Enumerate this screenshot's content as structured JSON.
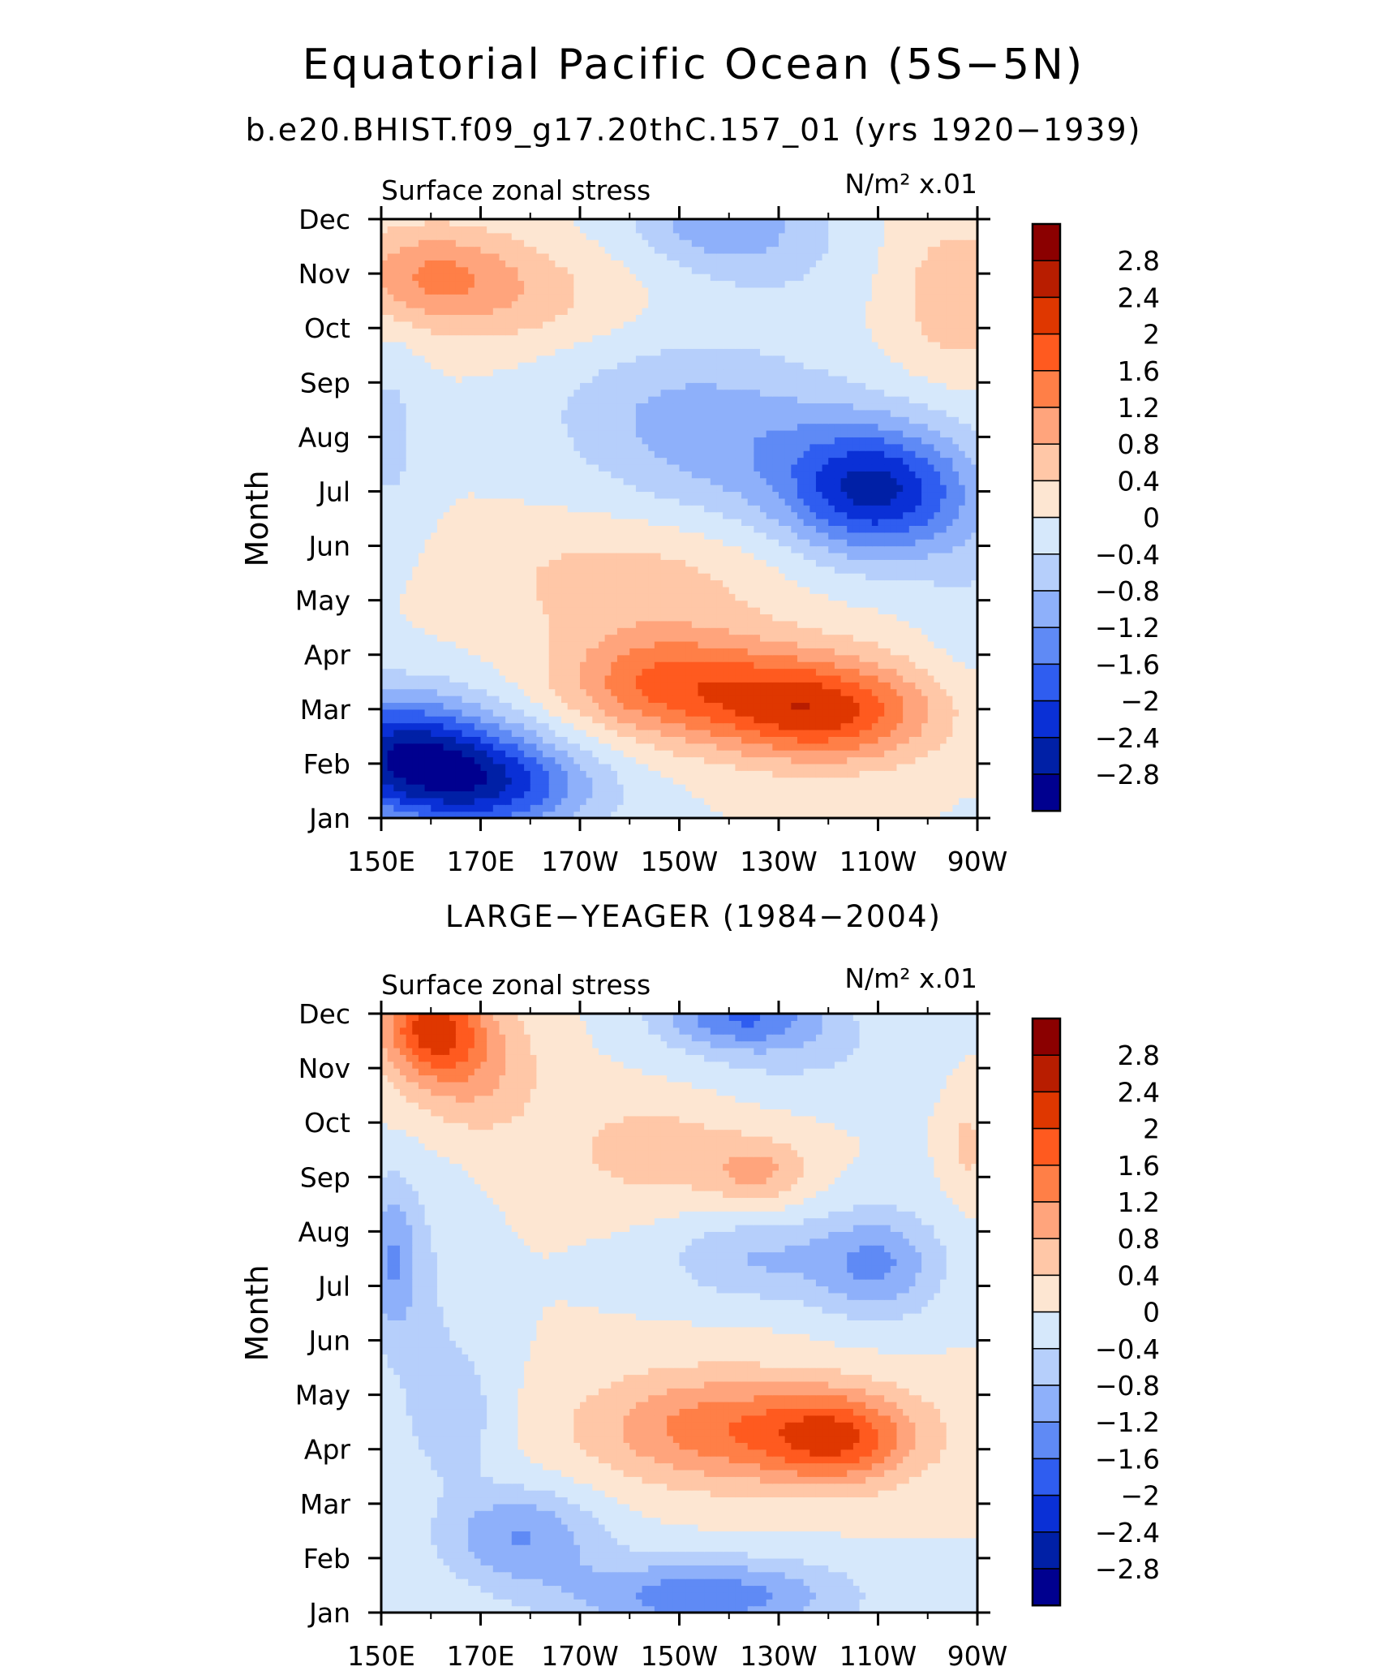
{
  "header": {
    "title": "Equatorial Pacific Ocean (5S−5N)",
    "subtitle": "b.e20.BHIST.f09_g17.20thC.157_01 (yrs 1920−1939)"
  },
  "colorbar": {
    "labels": [
      "2.8",
      "2.4",
      "2",
      "1.6",
      "1.2",
      "0.8",
      "0.4",
      "0",
      "−0.4",
      "−0.8",
      "−1.2",
      "−1.6",
      "−2",
      "−2.4",
      "−2.8"
    ],
    "colors": [
      "#8b0000",
      "#b81d00",
      "#df3700",
      "#ff5a1f",
      "#ff7f47",
      "#ffa47c",
      "#ffc7a7",
      "#fde6d2",
      "#d6e8fb",
      "#b6cffb",
      "#8eb0fa",
      "#5f8af5",
      "#2f5df0",
      "#0a30d6",
      "#0020a6",
      "#00008f"
    ]
  },
  "chart_data": [
    {
      "type": "heatmap",
      "panel_title": "",
      "left_label": "Surface zonal stress",
      "right_label": "N/m² x.01",
      "ylabel": "Month",
      "x_ticks": [
        "150E",
        "170E",
        "170W",
        "150W",
        "130W",
        "110W",
        "90W"
      ],
      "y_ticks": [
        "Jan",
        "Feb",
        "Mar",
        "Apr",
        "May",
        "Jun",
        "Jul",
        "Aug",
        "Sep",
        "Oct",
        "Nov",
        "Dec"
      ],
      "xlim": [
        150,
        270
      ],
      "ylim": [
        1,
        12
      ],
      "z_units": "N/m² x.01",
      "blobs": [
        {
          "lon": 158,
          "mon": 2,
          "val": -1.8,
          "sx": 24,
          "sy": 1.0
        },
        {
          "lon": 172,
          "mon": 1.5,
          "val": -1.5,
          "sx": 22,
          "sy": 0.9
        },
        {
          "lon": 152,
          "mon": 2.6,
          "val": -1.0,
          "sx": 18,
          "sy": 1.0
        },
        {
          "lon": 205,
          "mon": 3.5,
          "val": 1.3,
          "sx": 20,
          "sy": 1.0
        },
        {
          "lon": 240,
          "mon": 2.9,
          "val": 1.7,
          "sx": 22,
          "sy": 0.9
        },
        {
          "lon": 228,
          "mon": 3.4,
          "val": 0.9,
          "sx": 24,
          "sy": 1.0
        },
        {
          "lon": 200,
          "mon": 5.4,
          "val": 0.6,
          "sx": 30,
          "sy": 1.1
        },
        {
          "lon": 250,
          "mon": 7.0,
          "val": -2.3,
          "sx": 18,
          "sy": 1.2
        },
        {
          "lon": 225,
          "mon": 7.8,
          "val": -0.8,
          "sx": 28,
          "sy": 1.5
        },
        {
          "lon": 205,
          "mon": 8.6,
          "val": -0.5,
          "sx": 26,
          "sy": 1.4
        },
        {
          "lon": 152,
          "mon": 8.0,
          "val": -0.5,
          "sx": 7,
          "sy": 2.0
        },
        {
          "lon": 160,
          "mon": 11.0,
          "val": 1.1,
          "sx": 18,
          "sy": 0.9
        },
        {
          "lon": 178,
          "mon": 10.5,
          "val": 0.5,
          "sx": 24,
          "sy": 1.0
        },
        {
          "lon": 218,
          "mon": 12.0,
          "val": -1.0,
          "sx": 18,
          "sy": 0.9
        },
        {
          "lon": 232,
          "mon": 11.2,
          "val": -0.3,
          "sx": 20,
          "sy": 1.2
        },
        {
          "lon": 266,
          "mon": 10.6,
          "val": 0.7,
          "sx": 14,
          "sy": 1.5
        },
        {
          "lon": 268,
          "mon": 5.5,
          "val": -0.3,
          "sx": 10,
          "sy": 2.5
        }
      ]
    },
    {
      "type": "heatmap",
      "panel_title": "LARGE−YEAGER (1984−2004)",
      "left_label": "Surface zonal stress",
      "right_label": "N/m² x.01",
      "ylabel": "Month",
      "x_ticks": [
        "150E",
        "170E",
        "170W",
        "150W",
        "130W",
        "110W",
        "90W"
      ],
      "y_ticks": [
        "Jan",
        "Feb",
        "Mar",
        "Apr",
        "May",
        "Jun",
        "Jul",
        "Aug",
        "Sep",
        "Oct",
        "Nov",
        "Dec"
      ],
      "xlim": [
        150,
        270
      ],
      "ylim": [
        1,
        12
      ],
      "z_units": "N/m² x.01",
      "blobs": [
        {
          "lon": 160,
          "mon": 11.8,
          "val": 1.9,
          "sx": 10,
          "sy": 0.9
        },
        {
          "lon": 168,
          "mon": 11.0,
          "val": 0.9,
          "sx": 14,
          "sy": 1.2
        },
        {
          "lon": 205,
          "mon": 9.5,
          "val": 0.6,
          "sx": 20,
          "sy": 1.0
        },
        {
          "lon": 226,
          "mon": 9.1,
          "val": 0.8,
          "sx": 10,
          "sy": 0.6
        },
        {
          "lon": 228,
          "mon": 4.3,
          "val": 1.0,
          "sx": 32,
          "sy": 1.0
        },
        {
          "lon": 242,
          "mon": 4.2,
          "val": 1.3,
          "sx": 14,
          "sy": 0.8
        },
        {
          "lon": 214,
          "mon": 4.5,
          "val": 0.6,
          "sx": 24,
          "sy": 1.1
        },
        {
          "lon": 215,
          "mon": 1.3,
          "val": -1.5,
          "sx": 28,
          "sy": 0.7
        },
        {
          "lon": 178,
          "mon": 2.4,
          "val": -1.2,
          "sx": 16,
          "sy": 0.9
        },
        {
          "lon": 165,
          "mon": 4.6,
          "val": -0.6,
          "sx": 10,
          "sy": 1.3
        },
        {
          "lon": 152,
          "mon": 7.5,
          "val": -1.0,
          "sx": 5,
          "sy": 1.4
        },
        {
          "lon": 158,
          "mon": 7.0,
          "val": -0.4,
          "sx": 10,
          "sy": 2.5
        },
        {
          "lon": 250,
          "mon": 7.4,
          "val": -1.2,
          "sx": 13,
          "sy": 1.0
        },
        {
          "lon": 225,
          "mon": 7.5,
          "val": -0.8,
          "sx": 18,
          "sy": 0.8
        },
        {
          "lon": 222,
          "mon": 12.0,
          "val": -1.4,
          "sx": 16,
          "sy": 0.6
        },
        {
          "lon": 232,
          "mon": 11.4,
          "val": -0.5,
          "sx": 22,
          "sy": 0.9
        },
        {
          "lon": 268,
          "mon": 9.6,
          "val": 0.5,
          "sx": 4,
          "sy": 1.0
        }
      ]
    }
  ]
}
